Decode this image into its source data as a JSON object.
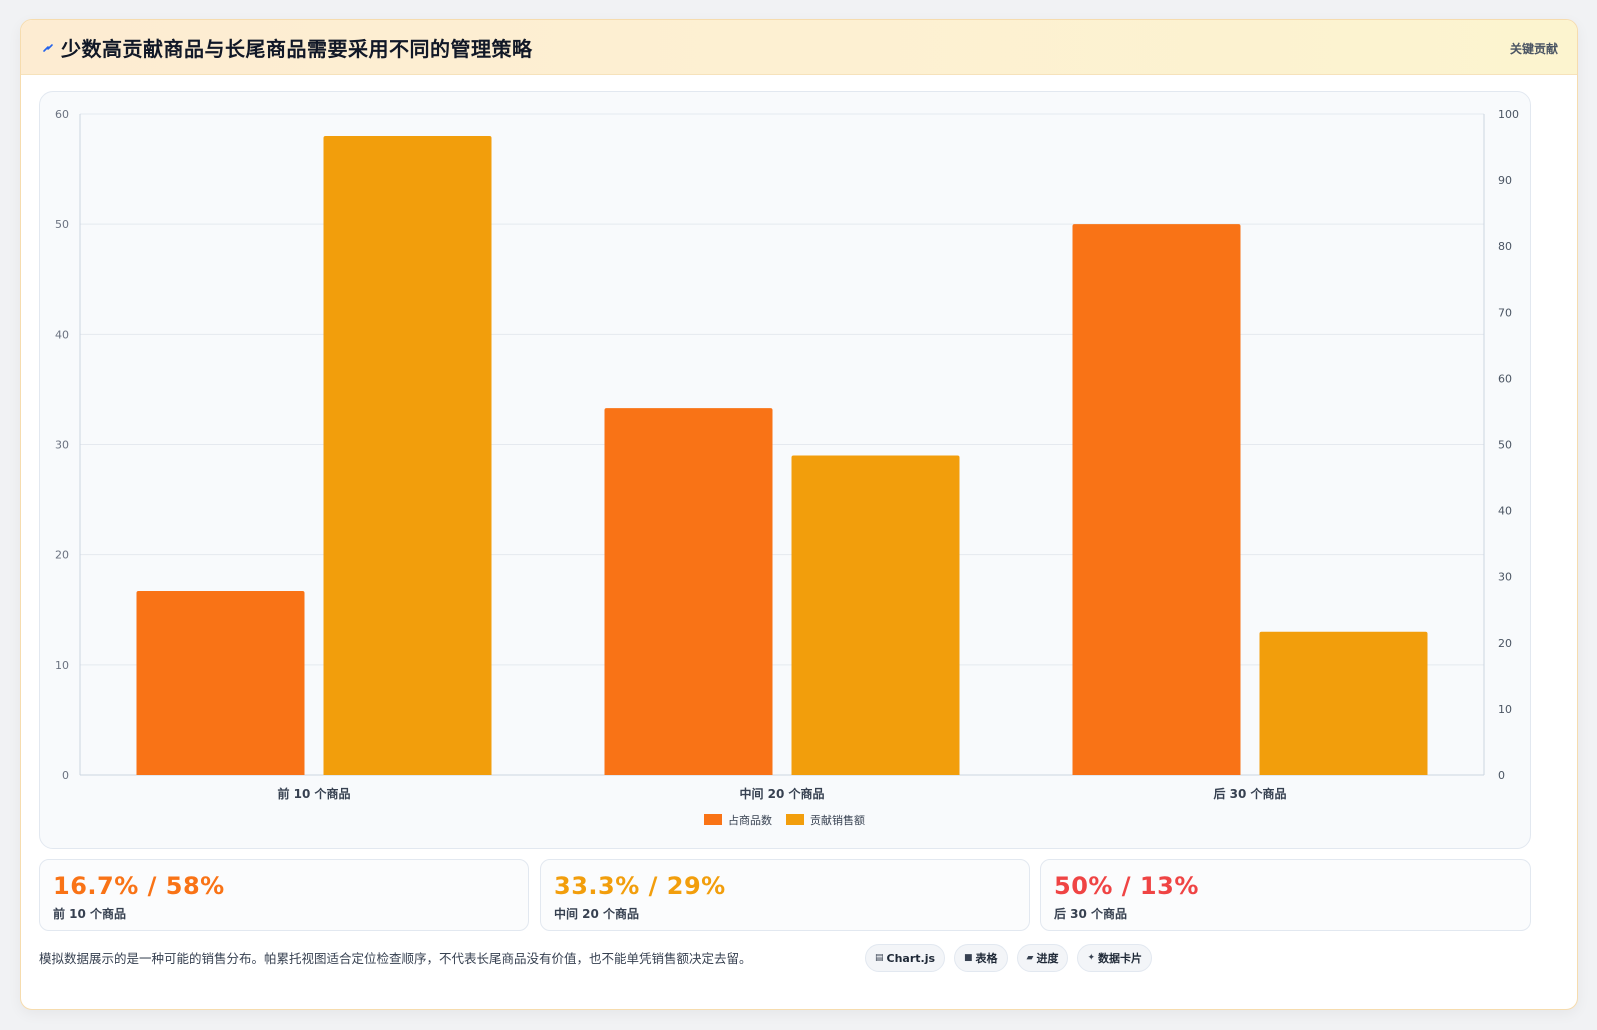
{
  "header": {
    "title": "少数高贡献商品与长尾商品需要采用不同的管理策略",
    "tag": "关键贡献"
  },
  "colors": {
    "series_items": "#f97316",
    "series_sales": "#f29e0c",
    "stat1": "#f97316",
    "stat2": "#f29e0c",
    "stat3": "#ef4444"
  },
  "chart_data": {
    "type": "bar",
    "categories": [
      "前 10 个商品",
      "中间 20 个商品",
      "后 30 个商品"
    ],
    "series": [
      {
        "name": "占商品数",
        "values": [
          16.7,
          33.3,
          50
        ],
        "axis": "left",
        "color": "#f97316"
      },
      {
        "name": "贡献销售额",
        "values": [
          58,
          29,
          13
        ],
        "axis": "left",
        "color": "#f29e0c"
      }
    ],
    "y_left": {
      "min": 0,
      "max": 60,
      "ticks": [
        0,
        10,
        20,
        30,
        40,
        50,
        60
      ]
    },
    "y_right": {
      "min": 0,
      "max": 100,
      "ticks": [
        0,
        10,
        20,
        30,
        40,
        50,
        60,
        70,
        80,
        90,
        100
      ]
    },
    "grid": true,
    "legend_position": "bottom"
  },
  "stats": [
    {
      "value": "16.7% / 58%",
      "label": "前 10 个商品"
    },
    {
      "value": "33.3% / 29%",
      "label": "中间 20 个商品"
    },
    {
      "value": "50% / 13%",
      "label": "后 30 个商品"
    }
  ],
  "footer": {
    "note": "模拟数据展示的是一种可能的销售分布。帕累托视图适合定位检查顺序，不代表长尾商品没有价值，也不能单凭销售额决定去留。",
    "chips": [
      {
        "icon": "chart-icon",
        "label": "Chart.js"
      },
      {
        "icon": "table-icon",
        "label": "表格"
      },
      {
        "icon": "progress-icon",
        "label": "进度"
      },
      {
        "icon": "sparkle-icon",
        "label": "数据卡片"
      }
    ]
  }
}
